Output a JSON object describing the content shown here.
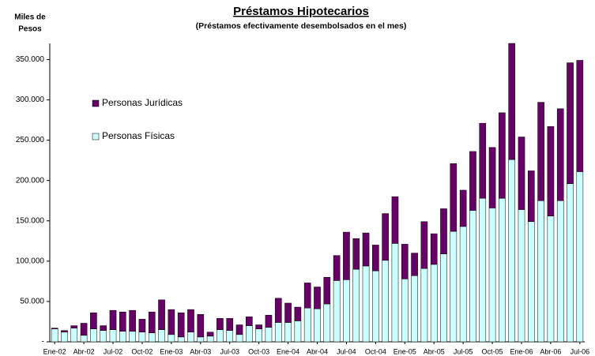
{
  "chart_data": {
    "type": "stacked-bar",
    "title": "Préstamos Hipotecarios",
    "subtitle": "(Préstamos efectivamente desembolsados en el mes)",
    "ylabel_lines": [
      "Miles de",
      "Pesos"
    ],
    "categories": [
      "Ene-02",
      null,
      null,
      "Abr-02",
      null,
      null,
      "Jul-02",
      null,
      null,
      "Oct-02",
      null,
      null,
      "Ene-03",
      null,
      null,
      "Abr-03",
      null,
      null,
      "Jul-03",
      null,
      null,
      "Oct-03",
      null,
      null,
      "Ene-04",
      null,
      null,
      "Abr-04",
      null,
      null,
      "Jul-04",
      null,
      null,
      "Oct-04",
      null,
      null,
      "Ene-05",
      null,
      null,
      "Abr-05",
      null,
      null,
      "Jul-05",
      null,
      null,
      "Oct-05",
      null,
      null,
      "Ene-06",
      null,
      null,
      "Abr-06",
      null,
      null,
      "Jul-06"
    ],
    "series": [
      {
        "name": "Personas Físicas",
        "color": "#ccffff",
        "values": [
          16000,
          12000,
          17000,
          8000,
          16000,
          14000,
          15000,
          13000,
          13000,
          12000,
          11000,
          15000,
          9000,
          6000,
          12000,
          6000,
          7000,
          15000,
          14000,
          9000,
          20000,
          16000,
          18000,
          24000,
          24000,
          26000,
          42000,
          41000,
          47000,
          76000,
          77000,
          90000,
          94000,
          88000,
          101000,
          122000,
          78000,
          82000,
          91000,
          96000,
          109000,
          137000,
          143000,
          163000,
          178000,
          166000,
          178000,
          226000,
          164000,
          149000,
          175000,
          156000,
          175000,
          196000,
          211000
        ]
      },
      {
        "name": "Personas Jurídicas",
        "color": "#660066",
        "values": [
          1000,
          2000,
          3000,
          15000,
          20000,
          6000,
          24000,
          24000,
          26000,
          16000,
          26000,
          37000,
          31000,
          30000,
          28000,
          28000,
          5000,
          14000,
          15000,
          12000,
          11000,
          5000,
          15000,
          30000,
          24000,
          17000,
          31000,
          27000,
          33000,
          31000,
          59000,
          38000,
          41000,
          32000,
          58000,
          58000,
          43000,
          28000,
          58000,
          38000,
          56000,
          84000,
          45000,
          73000,
          93000,
          75000,
          106000,
          144000,
          90000,
          63000,
          122000,
          111000,
          114000,
          150000,
          138000
        ]
      }
    ],
    "ylim": [
      0,
      370000
    ],
    "yticks": [
      {
        "value": 0,
        "label": "-"
      },
      {
        "value": 50000,
        "label": "50.000"
      },
      {
        "value": 100000,
        "label": "100.000"
      },
      {
        "value": 150000,
        "label": "150.000"
      },
      {
        "value": 200000,
        "label": "200.000"
      },
      {
        "value": 250000,
        "label": "250.000"
      },
      {
        "value": 300000,
        "label": "300.000"
      },
      {
        "value": 350000,
        "label": "350.000"
      }
    ],
    "legend": "upper left"
  }
}
